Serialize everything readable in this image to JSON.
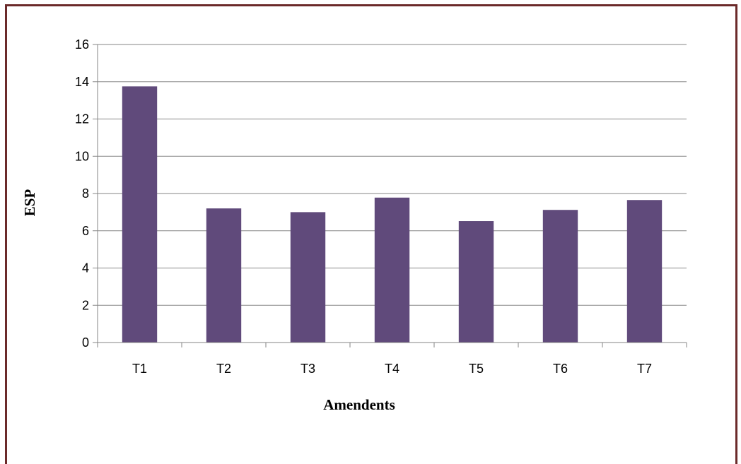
{
  "chart_data": {
    "type": "bar",
    "categories": [
      "T1",
      "T2",
      "T3",
      "T4",
      "T5",
      "T6",
      "T7"
    ],
    "values": [
      13.75,
      7.2,
      7.0,
      7.78,
      6.52,
      7.12,
      7.65
    ],
    "title": "",
    "xlabel": "Amendents",
    "ylabel": "ESP",
    "ylim": [
      0,
      16
    ],
    "yticks": [
      0,
      2,
      4,
      6,
      8,
      10,
      12,
      14,
      16
    ],
    "grid": true,
    "bar_color": "#604a7b",
    "grid_color": "#868686"
  }
}
